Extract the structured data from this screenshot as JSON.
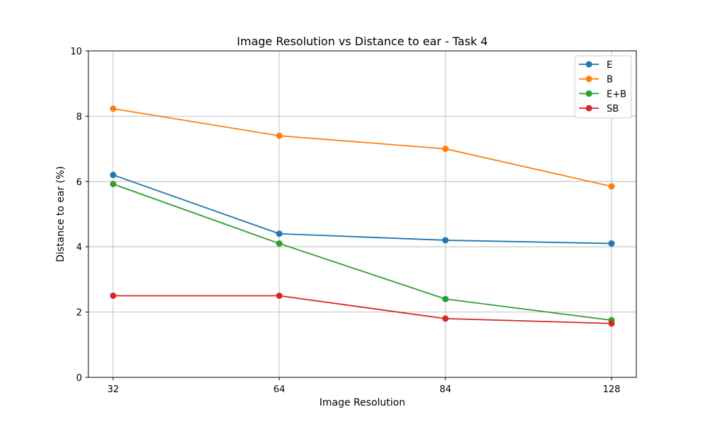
{
  "chart_data": {
    "type": "line",
    "title": "Image Resolution vs Distance to ear - Task 4",
    "xlabel": "Image Resolution",
    "ylabel": "Distance to ear (%)",
    "categories": [
      "32",
      "64",
      "84",
      "128"
    ],
    "ylim": [
      0,
      10
    ],
    "yticks": [
      "0",
      "2",
      "4",
      "6",
      "8",
      "10"
    ],
    "grid": true,
    "legend_position": "top-right",
    "series": [
      {
        "name": "E",
        "color": "#1f77b4",
        "values": [
          6.2,
          4.4,
          4.2,
          4.1
        ]
      },
      {
        "name": "B",
        "color": "#ff7f0e",
        "values": [
          8.23,
          7.4,
          7.0,
          5.85
        ]
      },
      {
        "name": "E+B",
        "color": "#2ca02c",
        "values": [
          5.92,
          4.1,
          2.4,
          1.75
        ]
      },
      {
        "name": "SB",
        "color": "#d62728",
        "values": [
          2.5,
          2.5,
          1.8,
          1.65
        ]
      }
    ]
  }
}
